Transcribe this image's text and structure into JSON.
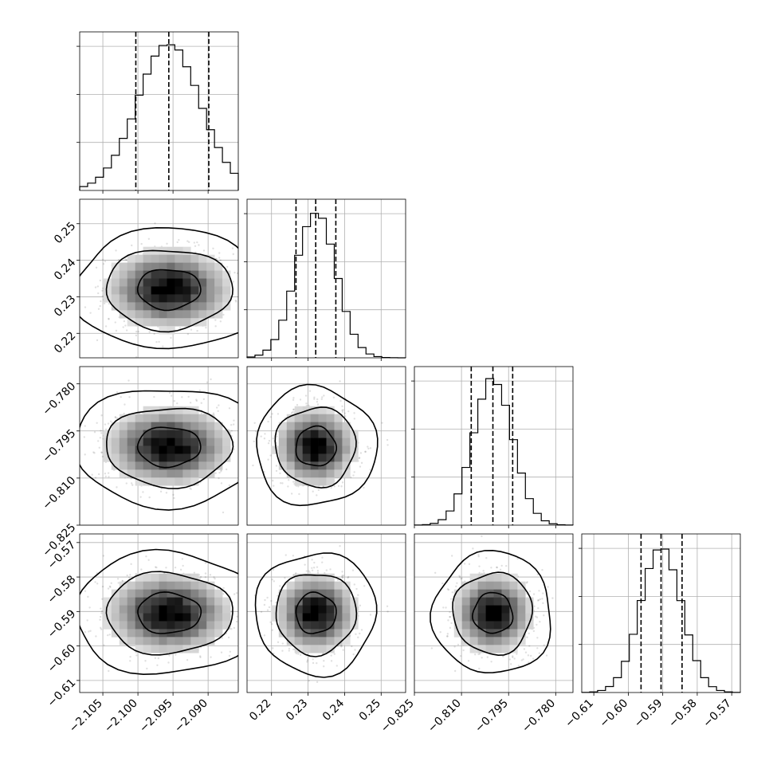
{
  "chart_data": {
    "type": "corner",
    "params": [
      {
        "range": [
          -2.1083,
          -2.0857
        ],
        "ticks": [
          -2.105,
          -2.1,
          -2.095,
          -2.09
        ],
        "tick_labels": [
          "−2.105",
          "−2.100",
          "−2.095",
          "−2.090"
        ],
        "quantiles": [
          -2.1003,
          -2.0956,
          -2.0899
        ],
        "mean": -2.0956,
        "sd": 0.0045,
        "hist_max": 3.3
      },
      {
        "range": [
          0.2133,
          0.2567
        ],
        "ticks": [
          0.22,
          0.23,
          0.24,
          0.25
        ],
        "tick_labels": [
          "0.22",
          "0.23",
          "0.24",
          "0.25"
        ],
        "quantiles": [
          0.2267,
          0.2321,
          0.2376
        ],
        "mean": 0.2321,
        "sd": 0.0055,
        "hist_max": 3.3
      },
      {
        "range": [
          -0.825,
          -0.7745
        ],
        "ticks": [
          -0.825,
          -0.81,
          -0.795,
          -0.78
        ],
        "tick_labels": [
          "−0.825",
          "−0.810",
          "−0.795",
          "−0.780"
        ],
        "quantiles": [
          -0.8069,
          -0.8,
          -0.7937
        ],
        "mean": -0.8,
        "sd": 0.0063,
        "hist_max": 3.3
      },
      {
        "range": [
          -0.6135,
          -0.5675
        ],
        "ticks": [
          -0.61,
          -0.6,
          -0.59,
          -0.58,
          -0.57
        ],
        "tick_labels": [
          "−0.61",
          "−0.60",
          "−0.59",
          "−0.58",
          "−0.57"
        ],
        "quantiles": [
          -0.5963,
          -0.5905,
          -0.5844
        ],
        "mean": -0.5905,
        "sd": 0.0059,
        "hist_max": 3.3
      }
    ],
    "contour_levels": [
      0.393,
      0.865,
      0.989
    ],
    "grid": true
  }
}
